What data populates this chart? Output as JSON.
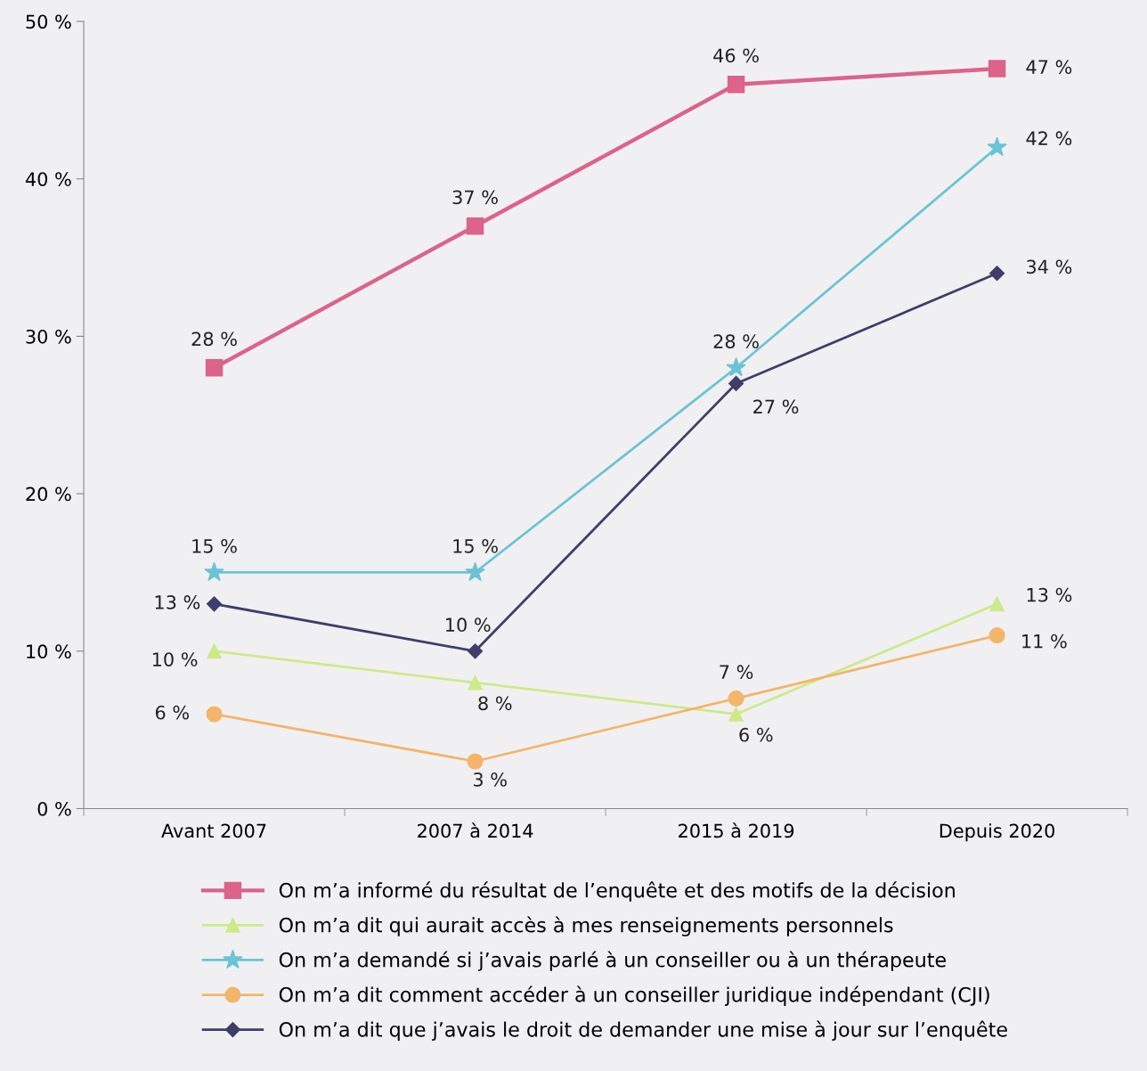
{
  "chart_data": {
    "type": "line",
    "categories": [
      "Avant 2007",
      "2007 à 2014",
      "2015 à 2019",
      "Depuis 2020"
    ],
    "ylim": [
      0,
      50
    ],
    "yticks": [
      {
        "value": 0,
        "label": "0 %"
      },
      {
        "value": 10,
        "label": "10 %"
      },
      {
        "value": 20,
        "label": "20 %"
      },
      {
        "value": 30,
        "label": "30 %"
      },
      {
        "value": 40,
        "label": "40 %"
      },
      {
        "value": 50,
        "label": "50 %"
      }
    ],
    "grid": false,
    "legend": "bottom",
    "line_style": "solid",
    "series": [
      {
        "name": "On m’a informé du résultat de l’enquête et des motifs de la décision",
        "color": "#dc6389",
        "marker": "square",
        "values": [
          28,
          37,
          46,
          47
        ],
        "value_labels": [
          "28 %",
          "37 %",
          "46 %",
          "47 %"
        ]
      },
      {
        "name": "On m’a dit qui aurait accès à mes renseignements personnels",
        "color": "#cdea8a",
        "marker": "triangle",
        "values": [
          10,
          8,
          6,
          13
        ],
        "value_labels": [
          "10 %",
          "8 %",
          "6 %",
          "13 %"
        ]
      },
      {
        "name": "On m’a demandé si j’avais parlé à un conseiller ou à un thérapeute",
        "color": "#6bc3d6",
        "marker": "star",
        "values": [
          15,
          15,
          28,
          42
        ],
        "value_labels": [
          "15 %",
          "15 %",
          "28 %",
          "42 %"
        ]
      },
      {
        "name": "On m’a dit comment accéder à un conseiller juridique indépendant (CJI)",
        "color": "#f4b46a",
        "marker": "circle",
        "values": [
          6,
          3,
          7,
          11
        ],
        "value_labels": [
          "6 %",
          "3 %",
          "7 %",
          "11 %"
        ]
      },
      {
        "name": "On m’a dit que j’avais le droit de demander une mise à jour sur l’enquête",
        "color": "#3f3d6b",
        "marker": "diamond",
        "values": [
          13,
          10,
          27,
          34
        ],
        "value_labels": [
          "13 %",
          "10 %",
          "27 %",
          "34 %"
        ]
      }
    ]
  }
}
